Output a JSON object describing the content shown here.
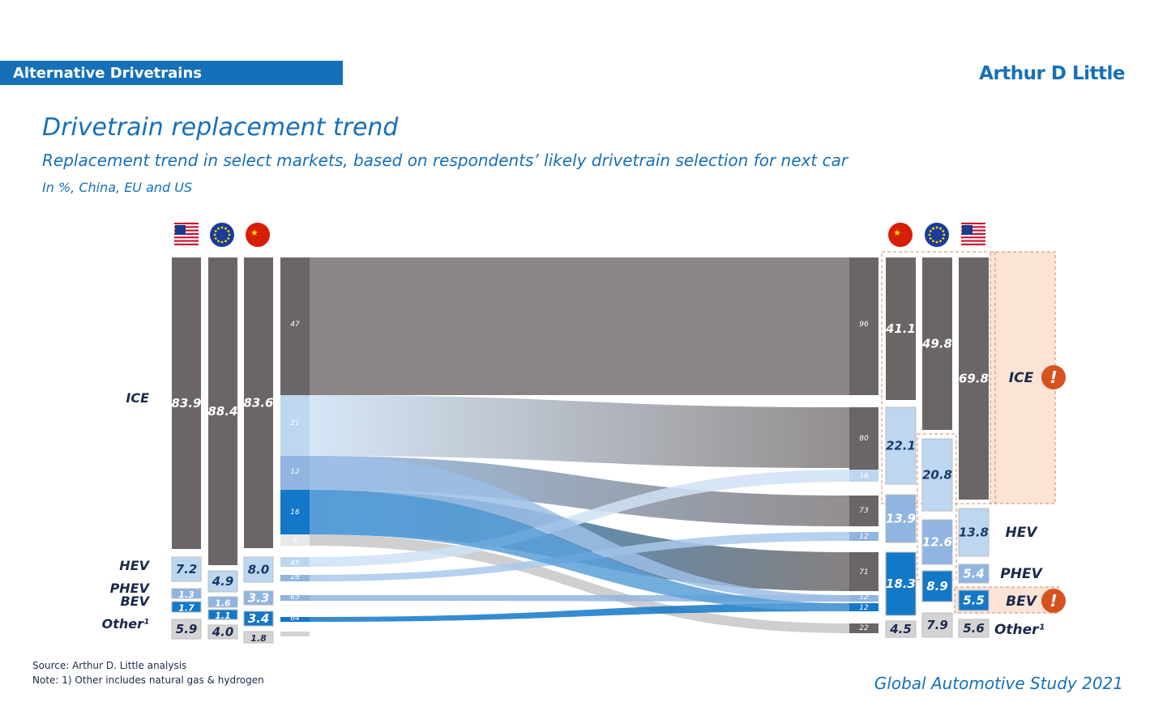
{
  "header": {
    "section": "Alternative Drivetrains",
    "logo": "Arthur D Little"
  },
  "title": "Drivetrain replacement trend",
  "subtitle": "Replacement trend in select markets, based on respondents’ likely drivetrain selection for next car",
  "unit": "In %, China, EU and US",
  "footnotes": {
    "source": "Source: Arthur D. Little analysis",
    "note": "Note: 1) Other includes natural gas & hydrogen"
  },
  "study": "Global Automotive Study 2021",
  "colors": {
    "ice": "#6b6565",
    "hev": "#bcd7ef",
    "phev": "#8fb5e0",
    "bev": "#1478c8",
    "other": "#d4d4d4",
    "alert": "#d5531f",
    "accent": "#1670b8"
  },
  "chart_data": {
    "type": "sankey",
    "title": "Drivetrain replacement trend",
    "markets": [
      "US",
      "EU",
      "China"
    ],
    "categories": [
      "ICE",
      "HEV",
      "PHEV",
      "BEV",
      "Other"
    ],
    "category_labels": [
      "ICE",
      "HEV",
      "PHEV",
      "BEV",
      "Other¹"
    ],
    "current": {
      "US": [
        83.9,
        7.2,
        1.3,
        1.7,
        5.9
      ],
      "EU": [
        88.4,
        4.9,
        1.6,
        1.1,
        4.0
      ],
      "China": [
        83.6,
        8.0,
        3.3,
        3.4,
        1.8
      ]
    },
    "current_labels": {
      "US": [
        "83.9",
        "7.2",
        "1.3",
        "1.7",
        "5.9"
      ],
      "EU": [
        "88.4",
        "4.9",
        "1.6",
        "1.1",
        "4.0"
      ],
      "China": [
        "83.6",
        "8.0",
        "3.3",
        "3.4",
        "1.8"
      ]
    },
    "next": {
      "China": [
        41.1,
        22.1,
        13.9,
        18.3,
        4.5
      ],
      "EU": [
        49.8,
        20.8,
        12.6,
        8.9,
        7.9
      ],
      "US": [
        69.8,
        13.8,
        5.4,
        5.5,
        5.6
      ]
    },
    "next_labels": {
      "China": [
        "41.1",
        "22.1",
        "13.9",
        "18.3",
        "4.5"
      ],
      "EU": [
        "49.8",
        "20.8",
        "12.6",
        "8.9",
        "7.9"
      ],
      "US": [
        "69.8",
        "13.8",
        "5.4",
        "5.5",
        "5.6"
      ]
    },
    "source_flow_labels": [
      "47",
      "21",
      "12",
      "16",
      "4",
      "45",
      "28",
      "65",
      "64"
    ],
    "target_flow_labels": [
      "96",
      "80",
      "16",
      "73",
      "12",
      "71",
      "12",
      "12",
      "22"
    ],
    "flows": [
      {
        "from": "ICE",
        "to": "ICE",
        "value": 47
      },
      {
        "from": "ICE",
        "to": "HEV",
        "value": 21
      },
      {
        "from": "ICE",
        "to": "PHEV",
        "value": 12
      },
      {
        "from": "ICE",
        "to": "BEV",
        "value": 16
      },
      {
        "from": "ICE",
        "to": "Other",
        "value": 4
      },
      {
        "from": "HEV",
        "to": "HEV",
        "value": 45
      },
      {
        "from": "HEV",
        "to": "PHEV",
        "value": 28
      },
      {
        "from": "PHEV",
        "to": "BEV",
        "value": 65
      },
      {
        "from": "BEV",
        "to": "BEV",
        "value": 64
      }
    ],
    "alerts": [
      "ICE",
      "BEV"
    ]
  }
}
